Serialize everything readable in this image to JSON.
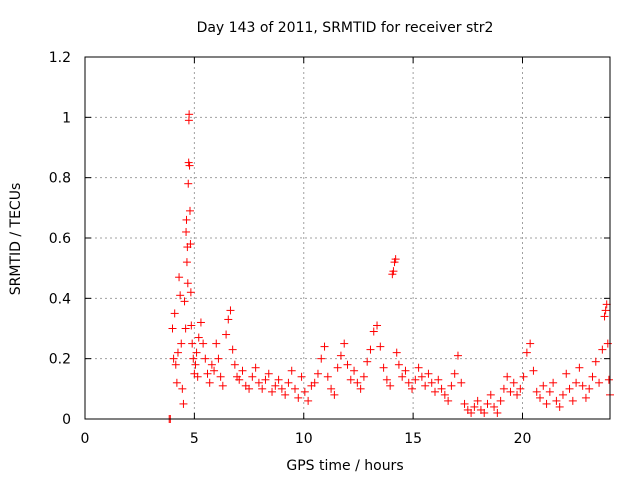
{
  "chart_data": {
    "type": "scatter",
    "title": "Day 143 of 2011, SRMTID for receiver str2",
    "xlabel": "GPS time / hours",
    "ylabel": "SRMTID / TECUs",
    "xlim": [
      0,
      24
    ],
    "ylim": [
      0,
      1.2
    ],
    "xticks": [
      0,
      5,
      10,
      15,
      20
    ],
    "xtick_labels": [
      "0",
      "5",
      "10",
      "15",
      "20"
    ],
    "yticks": [
      0,
      0.2,
      0.4,
      0.6,
      0.8,
      1,
      1.2
    ],
    "ytick_labels": [
      "0",
      "0.2",
      "0.4",
      "0.6",
      "0.8",
      "1",
      "1.2"
    ],
    "grid": true,
    "marker": "plus",
    "marker_color": "#ff0000",
    "series": [
      {
        "name": "str2",
        "points": [
          [
            3.85,
            0.0
          ],
          [
            3.9,
            0.0
          ],
          [
            4.0,
            0.3
          ],
          [
            4.05,
            0.2
          ],
          [
            4.1,
            0.35
          ],
          [
            4.15,
            0.18
          ],
          [
            4.2,
            0.12
          ],
          [
            4.25,
            0.22
          ],
          [
            4.3,
            0.47
          ],
          [
            4.35,
            0.41
          ],
          [
            4.4,
            0.25
          ],
          [
            4.45,
            0.1
          ],
          [
            4.5,
            0.05
          ],
          [
            4.55,
            0.39
          ],
          [
            4.6,
            0.3
          ],
          [
            4.62,
            0.62
          ],
          [
            4.64,
            0.66
          ],
          [
            4.66,
            0.52
          ],
          [
            4.68,
            0.57
          ],
          [
            4.7,
            0.45
          ],
          [
            4.72,
            0.78
          ],
          [
            4.74,
            0.85
          ],
          [
            4.75,
            0.99
          ],
          [
            4.76,
            1.01
          ],
          [
            4.78,
            0.84
          ],
          [
            4.8,
            0.69
          ],
          [
            4.82,
            0.58
          ],
          [
            4.84,
            0.42
          ],
          [
            4.86,
            0.31
          ],
          [
            4.9,
            0.25
          ],
          [
            4.95,
            0.2
          ],
          [
            5.0,
            0.15
          ],
          [
            5.05,
            0.18
          ],
          [
            5.1,
            0.22
          ],
          [
            5.15,
            0.14
          ],
          [
            5.2,
            0.27
          ],
          [
            5.3,
            0.32
          ],
          [
            5.4,
            0.25
          ],
          [
            5.5,
            0.2
          ],
          [
            5.6,
            0.15
          ],
          [
            5.7,
            0.12
          ],
          [
            5.8,
            0.18
          ],
          [
            5.9,
            0.16
          ],
          [
            6.0,
            0.25
          ],
          [
            6.1,
            0.2
          ],
          [
            6.2,
            0.14
          ],
          [
            6.3,
            0.11
          ],
          [
            6.45,
            0.28
          ],
          [
            6.55,
            0.33
          ],
          [
            6.65,
            0.36
          ],
          [
            6.75,
            0.23
          ],
          [
            6.85,
            0.18
          ],
          [
            6.95,
            0.14
          ],
          [
            7.05,
            0.13
          ],
          [
            7.2,
            0.16
          ],
          [
            7.35,
            0.11
          ],
          [
            7.5,
            0.1
          ],
          [
            7.65,
            0.14
          ],
          [
            7.8,
            0.17
          ],
          [
            7.95,
            0.12
          ],
          [
            8.1,
            0.1
          ],
          [
            8.25,
            0.13
          ],
          [
            8.4,
            0.15
          ],
          [
            8.55,
            0.09
          ],
          [
            8.7,
            0.11
          ],
          [
            8.85,
            0.13
          ],
          [
            9.0,
            0.1
          ],
          [
            9.15,
            0.08
          ],
          [
            9.3,
            0.12
          ],
          [
            9.45,
            0.16
          ],
          [
            9.6,
            0.1
          ],
          [
            9.75,
            0.07
          ],
          [
            9.9,
            0.14
          ],
          [
            10.05,
            0.09
          ],
          [
            10.2,
            0.06
          ],
          [
            10.35,
            0.11
          ],
          [
            10.5,
            0.12
          ],
          [
            10.65,
            0.15
          ],
          [
            10.8,
            0.2
          ],
          [
            10.95,
            0.24
          ],
          [
            11.1,
            0.14
          ],
          [
            11.25,
            0.1
          ],
          [
            11.4,
            0.08
          ],
          [
            11.55,
            0.17
          ],
          [
            11.7,
            0.21
          ],
          [
            11.85,
            0.25
          ],
          [
            12.0,
            0.18
          ],
          [
            12.15,
            0.13
          ],
          [
            12.3,
            0.16
          ],
          [
            12.45,
            0.12
          ],
          [
            12.6,
            0.1
          ],
          [
            12.75,
            0.14
          ],
          [
            12.9,
            0.19
          ],
          [
            13.05,
            0.23
          ],
          [
            13.2,
            0.29
          ],
          [
            13.35,
            0.31
          ],
          [
            13.5,
            0.24
          ],
          [
            13.65,
            0.17
          ],
          [
            13.8,
            0.13
          ],
          [
            13.95,
            0.11
          ],
          [
            14.05,
            0.48
          ],
          [
            14.1,
            0.49
          ],
          [
            14.15,
            0.52
          ],
          [
            14.2,
            0.53
          ],
          [
            14.25,
            0.22
          ],
          [
            14.35,
            0.18
          ],
          [
            14.5,
            0.14
          ],
          [
            14.65,
            0.16
          ],
          [
            14.8,
            0.12
          ],
          [
            14.95,
            0.1
          ],
          [
            15.1,
            0.13
          ],
          [
            15.25,
            0.17
          ],
          [
            15.4,
            0.14
          ],
          [
            15.55,
            0.11
          ],
          [
            15.7,
            0.15
          ],
          [
            15.85,
            0.12
          ],
          [
            16.0,
            0.09
          ],
          [
            16.15,
            0.13
          ],
          [
            16.3,
            0.1
          ],
          [
            16.45,
            0.08
          ],
          [
            16.6,
            0.06
          ],
          [
            16.75,
            0.11
          ],
          [
            16.9,
            0.15
          ],
          [
            17.05,
            0.21
          ],
          [
            17.2,
            0.12
          ],
          [
            17.35,
            0.05
          ],
          [
            17.5,
            0.03
          ],
          [
            17.65,
            0.02
          ],
          [
            17.8,
            0.04
          ],
          [
            17.95,
            0.06
          ],
          [
            18.1,
            0.03
          ],
          [
            18.25,
            0.02
          ],
          [
            18.4,
            0.05
          ],
          [
            18.55,
            0.08
          ],
          [
            18.7,
            0.04
          ],
          [
            18.85,
            0.02
          ],
          [
            19.0,
            0.06
          ],
          [
            19.15,
            0.1
          ],
          [
            19.3,
            0.14
          ],
          [
            19.45,
            0.09
          ],
          [
            19.6,
            0.12
          ],
          [
            19.75,
            0.08
          ],
          [
            19.9,
            0.1
          ],
          [
            20.05,
            0.14
          ],
          [
            20.2,
            0.22
          ],
          [
            20.35,
            0.25
          ],
          [
            20.5,
            0.16
          ],
          [
            20.65,
            0.09
          ],
          [
            20.8,
            0.07
          ],
          [
            20.95,
            0.11
          ],
          [
            21.1,
            0.05
          ],
          [
            21.25,
            0.09
          ],
          [
            21.4,
            0.12
          ],
          [
            21.55,
            0.06
          ],
          [
            21.7,
            0.04
          ],
          [
            21.85,
            0.08
          ],
          [
            22.0,
            0.15
          ],
          [
            22.15,
            0.1
          ],
          [
            22.3,
            0.06
          ],
          [
            22.45,
            0.12
          ],
          [
            22.6,
            0.17
          ],
          [
            22.75,
            0.11
          ],
          [
            22.9,
            0.07
          ],
          [
            23.05,
            0.1
          ],
          [
            23.2,
            0.14
          ],
          [
            23.35,
            0.19
          ],
          [
            23.5,
            0.12
          ],
          [
            23.65,
            0.23
          ],
          [
            23.75,
            0.34
          ],
          [
            23.8,
            0.36
          ],
          [
            23.85,
            0.38
          ],
          [
            23.9,
            0.25
          ],
          [
            23.95,
            0.13
          ],
          [
            24.0,
            0.08
          ]
        ]
      }
    ]
  }
}
